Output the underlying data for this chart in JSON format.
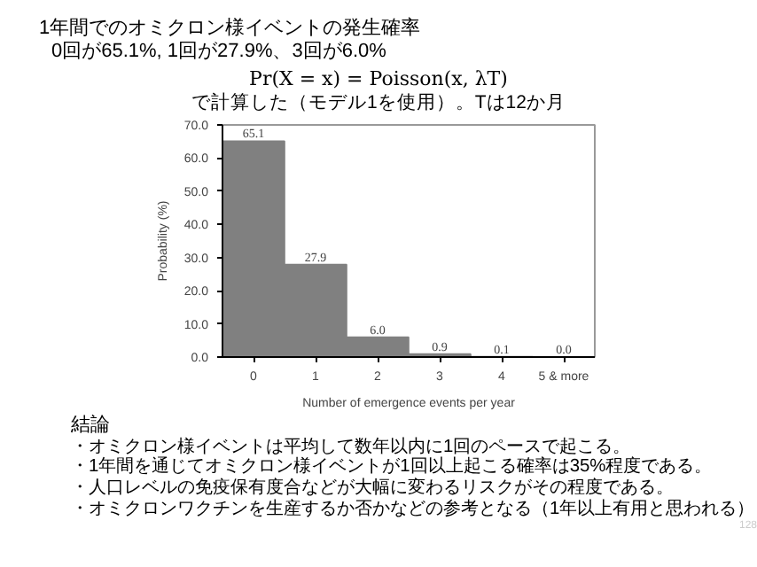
{
  "chart_data": {
    "type": "bar",
    "title": "1年間でのオミクロン様イベントの発生確率",
    "subtitle": "0回が65.1%, 1回が27.9%、3回が6.0%",
    "xlabel": "Number of emergence events per year",
    "ylabel": "Probability (%)",
    "categories": [
      "0",
      "1",
      "2",
      "3",
      "4",
      "5 & more"
    ],
    "values": [
      65.1,
      27.9,
      6.0,
      0.9,
      0.1,
      0.0
    ],
    "color": "#808080",
    "ylim": [
      0,
      70
    ],
    "yticks": [
      {
        "value": 0,
        "label": "0.0"
      },
      {
        "value": 10,
        "label": "10.0"
      },
      {
        "value": 20,
        "label": "20.0"
      },
      {
        "value": 30,
        "label": "30.0"
      },
      {
        "value": 40,
        "label": "40.0"
      },
      {
        "value": 50,
        "label": "50.0"
      },
      {
        "value": 60,
        "label": "60.0"
      },
      {
        "value": 70,
        "label": "70.0"
      }
    ],
    "data_labels": true,
    "value_labels": [
      "65.1",
      "27.9",
      "6.0",
      "0.9",
      "0.1",
      "0.0"
    ],
    "grid": false,
    "annotations": [
      "Pr(X = x) = Poisson(x, λT)",
      "で計算した（モデル1を使用）。Tは12か月",
      "結論",
      "・オミクロン様イベントは平均して数年以内に1回のペースで起こる。",
      "・1年間を通じてオミクロン様イベントが1回以上起こる確率は35%程度である。",
      "・人口レベルの免疫保有度合などが大幅に変わるリスクがその程度である。",
      "・オミクロンワクチンを生産するか否かなどの参考となる（1年以上有用と思われる）",
      "128"
    ]
  }
}
